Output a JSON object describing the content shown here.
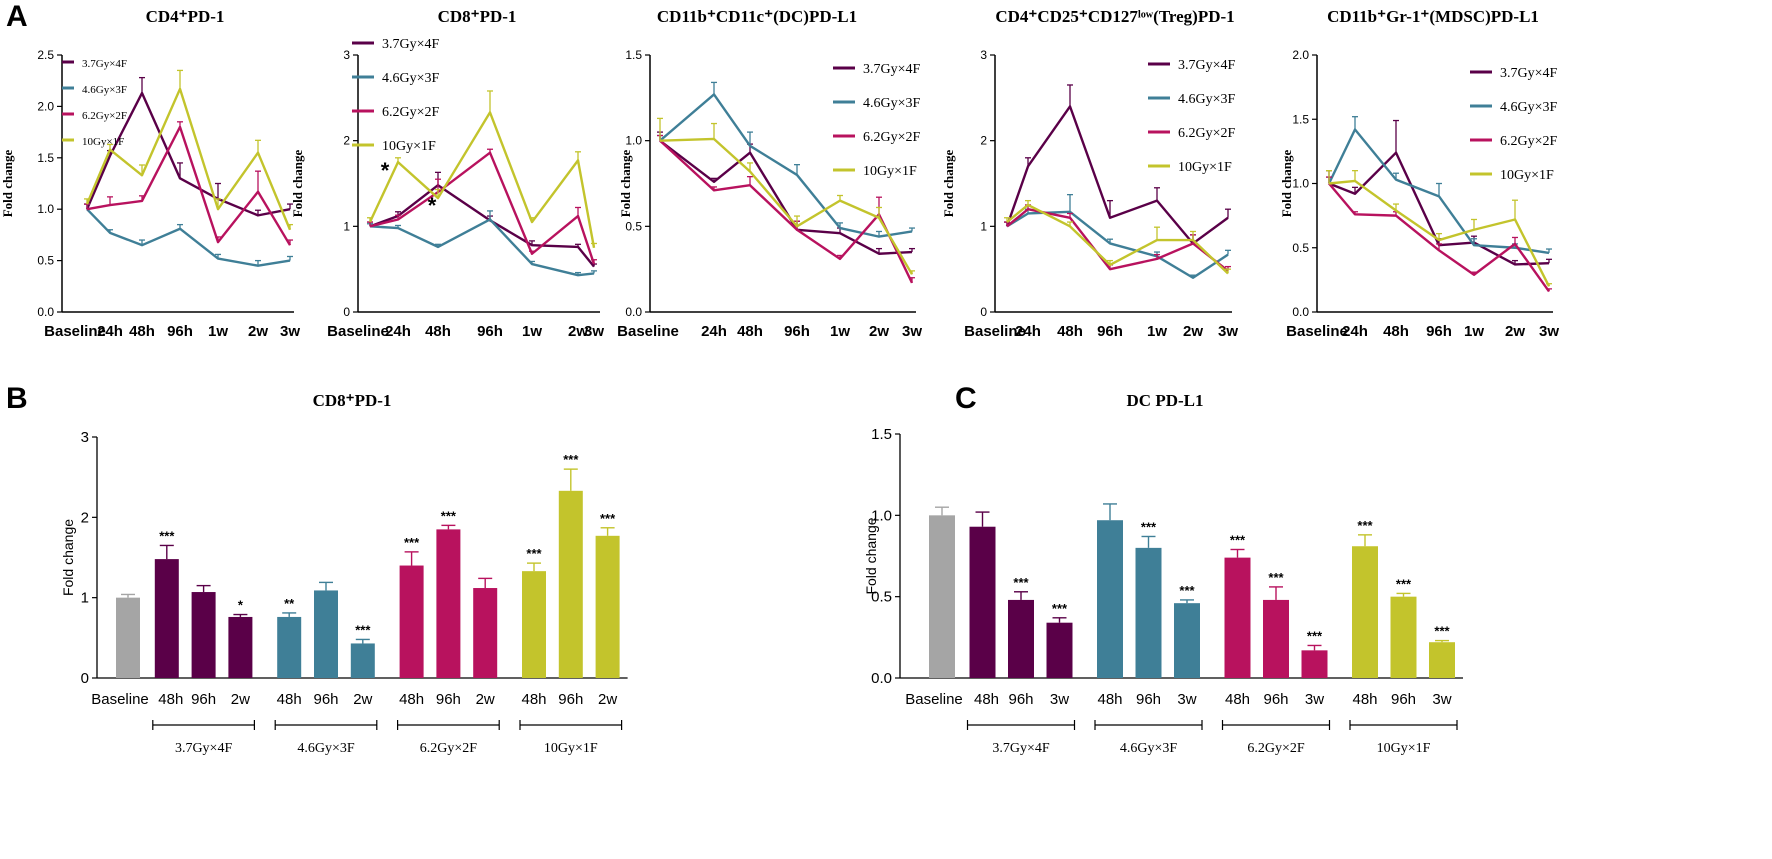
{
  "panel_letters": {
    "a": "A",
    "b": "B",
    "c": "C"
  },
  "colors": {
    "3.7Gy×4F": "#5a0048",
    "4.6Gy×3F": "#3f7f97",
    "6.2Gy×2F": "#b8125e",
    "10Gy×1F": "#c3c42c",
    "Baseline": "#a5a5a5"
  },
  "chart_data": [
    {
      "id": "a1",
      "type": "line",
      "title": "CD4⁺PD-1",
      "ylabel": "Fold change",
      "ylim": [
        0,
        2.5
      ],
      "yticks": [
        "0.0",
        "0.5",
        "1.0",
        "1.5",
        "2.0",
        "2.5"
      ],
      "categories": [
        "Baseline",
        "24h",
        "48h",
        "96h",
        "1w",
        "2w",
        "3w"
      ],
      "legend_position": "top-left",
      "series": [
        {
          "name": "3.7Gy×4F",
          "values": [
            1.0,
            1.52,
            2.13,
            1.3,
            1.1,
            0.94,
            1.0
          ],
          "errors": [
            0.05,
            0.05,
            0.15,
            0.15,
            0.15,
            0.05,
            0.05
          ]
        },
        {
          "name": "4.6Gy×3F",
          "values": [
            1.0,
            0.77,
            0.65,
            0.81,
            0.52,
            0.45,
            0.5
          ],
          "errors": [
            0.05,
            0.03,
            0.05,
            0.04,
            0.04,
            0.05,
            0.04
          ]
        },
        {
          "name": "6.2Gy×2F",
          "values": [
            1.0,
            1.04,
            1.08,
            1.8,
            0.68,
            1.17,
            0.65
          ],
          "errors": [
            0.05,
            0.08,
            0.05,
            0.05,
            0.05,
            0.2,
            0.05
          ]
        },
        {
          "name": "10Gy×1F",
          "values": [
            1.05,
            1.58,
            1.33,
            2.17,
            1.0,
            1.55,
            0.8
          ],
          "errors": [
            0.05,
            0.05,
            0.1,
            0.18,
            0.1,
            0.12,
            0.05
          ]
        }
      ]
    },
    {
      "id": "a2",
      "type": "line",
      "title": "CD8⁺PD-1",
      "ylabel": "Fold change",
      "ylim": [
        0,
        3
      ],
      "yticks": [
        "0",
        "1",
        "2",
        "3"
      ],
      "categories": [
        "Baseline",
        "24h",
        "48h",
        "96h",
        "1w",
        "2w",
        "3w"
      ],
      "legend_position": "top-left",
      "annotations": [
        "*",
        "*"
      ],
      "series": [
        {
          "name": "3.7Gy×4F",
          "values": [
            1.0,
            1.12,
            1.48,
            1.07,
            0.78,
            0.76,
            0.53
          ],
          "errors": [
            0.05,
            0.05,
            0.15,
            0.05,
            0.05,
            0.03,
            0.03
          ]
        },
        {
          "name": "4.6Gy×3F",
          "values": [
            1.0,
            0.98,
            0.76,
            1.08,
            0.56,
            0.43,
            0.45
          ],
          "errors": [
            0.03,
            0.03,
            0.03,
            0.1,
            0.03,
            0.03,
            0.03
          ]
        },
        {
          "name": "6.2Gy×2F",
          "values": [
            1.0,
            1.08,
            1.4,
            1.86,
            0.68,
            1.12,
            0.56
          ],
          "errors": [
            0.05,
            0.05,
            0.15,
            0.04,
            0.03,
            0.1,
            0.05
          ]
        },
        {
          "name": "10Gy×1F",
          "values": [
            1.05,
            1.75,
            1.33,
            2.33,
            1.05,
            1.77,
            0.75
          ],
          "errors": [
            0.05,
            0.05,
            0.1,
            0.25,
            0.05,
            0.1,
            0.05
          ]
        }
      ]
    },
    {
      "id": "a3",
      "type": "line",
      "title": "CD11b⁺CD11c⁺(DC)PD-L1",
      "ylabel": "Fold change",
      "ylim": [
        0,
        1.5
      ],
      "yticks": [
        "0.0",
        "0.5",
        "1.0",
        "1.5"
      ],
      "categories": [
        "Baseline",
        "24h",
        "48h",
        "96h",
        "1w",
        "2w",
        "3w"
      ],
      "legend_position": "top-right",
      "series": [
        {
          "name": "3.7Gy×4F",
          "values": [
            1.0,
            0.76,
            0.93,
            0.48,
            0.46,
            0.34,
            0.35
          ],
          "errors": [
            0.05,
            0.02,
            0.05,
            0.05,
            0.03,
            0.03,
            0.02
          ]
        },
        {
          "name": "4.6Gy×3F",
          "values": [
            1.0,
            1.27,
            0.97,
            0.8,
            0.49,
            0.44,
            0.47
          ],
          "errors": [
            0.03,
            0.07,
            0.08,
            0.06,
            0.03,
            0.03,
            0.02
          ]
        },
        {
          "name": "6.2Gy×2F",
          "values": [
            1.0,
            0.71,
            0.74,
            0.48,
            0.31,
            0.57,
            0.17
          ],
          "errors": [
            0.03,
            0.02,
            0.05,
            0.05,
            0.02,
            0.1,
            0.03
          ]
        },
        {
          "name": "10Gy×1F",
          "values": [
            1.0,
            1.01,
            0.82,
            0.5,
            0.65,
            0.55,
            0.22
          ],
          "errors": [
            0.13,
            0.09,
            0.05,
            0.06,
            0.03,
            0.06,
            0.02
          ]
        }
      ]
    },
    {
      "id": "a4",
      "type": "line",
      "title": "CD4⁺CD25⁺CD127ˡᵒʷ(Treg)PD-1",
      "ylabel": "Fold change",
      "ylim": [
        0,
        3
      ],
      "yticks": [
        "0",
        "1",
        "2",
        "3"
      ],
      "categories": [
        "Baseline",
        "24h",
        "48h",
        "96h",
        "1w",
        "2w",
        "3w"
      ],
      "legend_position": "top-right",
      "series": [
        {
          "name": "3.7Gy×4F",
          "values": [
            1.0,
            1.7,
            2.4,
            1.1,
            1.3,
            0.8,
            1.1
          ],
          "errors": [
            0.05,
            0.1,
            0.25,
            0.2,
            0.15,
            0.1,
            0.1
          ]
        },
        {
          "name": "4.6Gy×3F",
          "values": [
            1.0,
            1.15,
            1.17,
            0.8,
            0.65,
            0.4,
            0.67
          ],
          "errors": [
            0.05,
            0.05,
            0.2,
            0.05,
            0.05,
            0.03,
            0.05
          ]
        },
        {
          "name": "6.2Gy×2F",
          "values": [
            1.0,
            1.2,
            1.1,
            0.5,
            0.62,
            0.8,
            0.48
          ],
          "errors": [
            0.05,
            0.05,
            0.05,
            0.05,
            0.05,
            0.1,
            0.05
          ]
        },
        {
          "name": "10Gy×1F",
          "values": [
            1.05,
            1.25,
            1.0,
            0.55,
            0.84,
            0.84,
            0.45
          ],
          "errors": [
            0.05,
            0.05,
            0.05,
            0.05,
            0.15,
            0.1,
            0.05
          ]
        }
      ]
    },
    {
      "id": "a5",
      "type": "line",
      "title": "CD11b⁺Gr-1⁺(MDSC)PD-L1",
      "ylabel": "Fold change",
      "ylim": [
        0,
        2
      ],
      "yticks": [
        "0.0",
        "0.5",
        "1.0",
        "1.5",
        "2.0"
      ],
      "categories": [
        "Baseline",
        "24h",
        "48h",
        "96h",
        "1w",
        "2w",
        "3w"
      ],
      "legend_position": "top-right",
      "series": [
        {
          "name": "3.7Gy×4F",
          "values": [
            1.0,
            0.92,
            1.24,
            0.52,
            0.54,
            0.37,
            0.38
          ],
          "errors": [
            0.1,
            0.05,
            0.25,
            0.05,
            0.05,
            0.03,
            0.03
          ]
        },
        {
          "name": "4.6Gy×3F",
          "values": [
            1.0,
            1.42,
            1.03,
            0.9,
            0.52,
            0.5,
            0.46
          ],
          "errors": [
            0.05,
            0.1,
            0.05,
            0.1,
            0.05,
            0.03,
            0.03
          ]
        },
        {
          "name": "6.2Gy×2F",
          "values": [
            1.0,
            0.76,
            0.75,
            0.48,
            0.29,
            0.53,
            0.16
          ],
          "errors": [
            0.05,
            0.02,
            0.03,
            0.05,
            0.02,
            0.05,
            0.02
          ]
        },
        {
          "name": "10Gy×1F",
          "values": [
            1.0,
            1.02,
            0.79,
            0.56,
            0.64,
            0.72,
            0.2
          ],
          "errors": [
            0.1,
            0.08,
            0.05,
            0.05,
            0.08,
            0.15,
            0.02
          ]
        }
      ]
    },
    {
      "id": "b",
      "type": "bar",
      "title": "CD8⁺PD-1",
      "ylabel": "Fold change",
      "ylim": [
        0,
        3
      ],
      "yticks": [
        "0",
        "1",
        "2",
        "3"
      ],
      "categories": [
        "Baseline",
        "48h",
        "96h",
        "2w",
        "48h",
        "96h",
        "2w",
        "48h",
        "96h",
        "2w",
        "48h",
        "96h",
        "2w"
      ],
      "values": [
        1.0,
        1.48,
        1.07,
        0.76,
        0.76,
        1.09,
        0.43,
        1.4,
        1.85,
        1.12,
        1.33,
        2.33,
        1.77
      ],
      "errors": [
        0.04,
        0.17,
        0.08,
        0.03,
        0.05,
        0.1,
        0.05,
        0.17,
        0.05,
        0.12,
        0.1,
        0.27,
        0.1
      ],
      "significance": [
        "",
        "***",
        "",
        "*",
        "**",
        "",
        "***",
        "***",
        "***",
        "",
        "***",
        "***",
        "***"
      ],
      "bar_groups": [
        "Baseline",
        "3.7Gy×4F",
        "3.7Gy×4F",
        "3.7Gy×4F",
        "4.6Gy×3F",
        "4.6Gy×3F",
        "4.6Gy×3F",
        "6.2Gy×2F",
        "6.2Gy×2F",
        "6.2Gy×2F",
        "10Gy×1F",
        "10Gy×1F",
        "10Gy×1F"
      ],
      "groups": [
        {
          "label": "3.7Gy×4F",
          "from": 1,
          "to": 3
        },
        {
          "label": "4.6Gy×3F",
          "from": 4,
          "to": 6
        },
        {
          "label": "6.2Gy×2F",
          "from": 7,
          "to": 9
        },
        {
          "label": "10Gy×1F",
          "from": 10,
          "to": 12
        }
      ]
    },
    {
      "id": "c",
      "type": "bar",
      "title": "DC PD-L1",
      "ylabel": "Fold change",
      "ylim": [
        0,
        1.5
      ],
      "yticks": [
        "0.0",
        "0.5",
        "1.0",
        "1.5"
      ],
      "categories": [
        "Baseline",
        "48h",
        "96h",
        "3w",
        "48h",
        "96h",
        "3w",
        "48h",
        "96h",
        "3w",
        "48h",
        "96h",
        "3w"
      ],
      "values": [
        1.0,
        0.93,
        0.48,
        0.34,
        0.97,
        0.8,
        0.46,
        0.74,
        0.48,
        0.17,
        0.81,
        0.5,
        0.22
      ],
      "errors": [
        0.05,
        0.09,
        0.05,
        0.03,
        0.1,
        0.07,
        0.02,
        0.05,
        0.08,
        0.03,
        0.07,
        0.02,
        0.01
      ],
      "significance": [
        "",
        "",
        "***",
        "***",
        "",
        "***",
        "***",
        "***",
        "***",
        "***",
        "***",
        "***",
        "***"
      ],
      "bar_groups": [
        "Baseline",
        "3.7Gy×4F",
        "3.7Gy×4F",
        "3.7Gy×4F",
        "4.6Gy×3F",
        "4.6Gy×3F",
        "4.6Gy×3F",
        "6.2Gy×2F",
        "6.2Gy×2F",
        "6.2Gy×2F",
        "10Gy×1F",
        "10Gy×1F",
        "10Gy×1F"
      ],
      "groups": [
        {
          "label": "3.7Gy×4F",
          "from": 1,
          "to": 3
        },
        {
          "label": "4.6Gy×3F",
          "from": 4,
          "to": 6
        },
        {
          "label": "6.2Gy×2F",
          "from": 7,
          "to": 9
        },
        {
          "label": "10Gy×1F",
          "from": 10,
          "to": 12
        }
      ]
    }
  ]
}
